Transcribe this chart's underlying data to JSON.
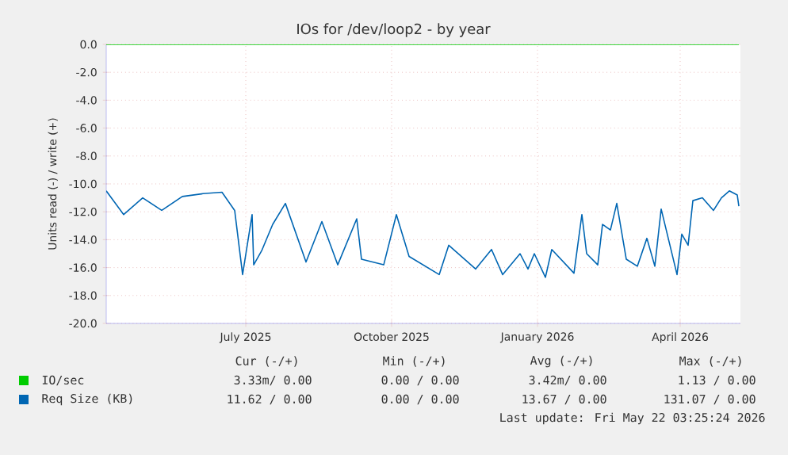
{
  "chart_data": {
    "type": "line",
    "title": "IOs for /dev/loop2 - by year",
    "ylabel": "Units read (-) / write (+)",
    "xlim": [
      "2025-04-04",
      "2026-05-09"
    ],
    "xticks": [
      {
        "value": "2025-07-01",
        "label": "July 2025"
      },
      {
        "value": "2025-10-01",
        "label": "October 2025"
      },
      {
        "value": "2026-01-01",
        "label": "January 2026"
      },
      {
        "value": "2026-04-01",
        "label": "April 2026"
      }
    ],
    "ylim": [
      -20,
      0
    ],
    "yticks": [
      {
        "value": -20,
        "label": "-20.0"
      },
      {
        "value": -18,
        "label": "-18.0"
      },
      {
        "value": -16,
        "label": "-16.0"
      },
      {
        "value": -14,
        "label": "-14.0"
      },
      {
        "value": -12,
        "label": "-12.0"
      },
      {
        "value": -10,
        "label": "-10.0"
      },
      {
        "value": -8,
        "label": "-8.0"
      },
      {
        "value": -6,
        "label": "-6.0"
      },
      {
        "value": -4,
        "label": "-4.0"
      },
      {
        "value": -2,
        "label": "-2.0"
      },
      {
        "value": 0,
        "label": "0.0"
      }
    ],
    "grid": true,
    "legend": "bottom",
    "series": [
      {
        "name": "IO/sec",
        "color": "#00cc00",
        "x": [
          "2025-04-04",
          "2026-05-08"
        ],
        "values": [
          0,
          0
        ]
      },
      {
        "name": "Req Size (KB)",
        "color": "#0066b3",
        "x": [
          "2025-04-04",
          "2025-04-15",
          "2025-04-27",
          "2025-05-09",
          "2025-05-22",
          "2025-06-04",
          "2025-06-16",
          "2025-06-24",
          "2025-06-29",
          "2025-07-05",
          "2025-07-06",
          "2025-07-11",
          "2025-07-18",
          "2025-07-26",
          "2025-08-08",
          "2025-08-18",
          "2025-08-28",
          "2025-09-09",
          "2025-09-12",
          "2025-09-26",
          "2025-10-04",
          "2025-10-12",
          "2025-10-31",
          "2025-11-06",
          "2025-11-23",
          "2025-12-03",
          "2025-12-10",
          "2025-12-21",
          "2025-12-26",
          "2025-12-30",
          "2026-01-06",
          "2026-01-10",
          "2026-01-24",
          "2026-01-29",
          "2026-02-01",
          "2026-02-08",
          "2026-02-11",
          "2026-02-16",
          "2026-02-20",
          "2026-02-26",
          "2026-03-05",
          "2026-03-11",
          "2026-03-16",
          "2026-03-20",
          "2026-03-30",
          "2026-04-02",
          "2026-04-06",
          "2026-04-09",
          "2026-04-15",
          "2026-04-22",
          "2026-04-27",
          "2026-05-02",
          "2026-05-07",
          "2026-05-08"
        ],
        "values": [
          -10.5,
          -12.2,
          -11.0,
          -11.9,
          -10.9,
          -10.7,
          -10.6,
          -11.9,
          -16.5,
          -12.2,
          -15.8,
          -14.8,
          -12.9,
          -11.4,
          -15.6,
          -12.7,
          -15.8,
          -12.5,
          -15.4,
          -15.8,
          -12.2,
          -15.2,
          -16.5,
          -14.4,
          -16.1,
          -14.7,
          -16.5,
          -15.0,
          -16.1,
          -15.0,
          -16.7,
          -14.7,
          -16.4,
          -12.2,
          -15.0,
          -15.8,
          -12.9,
          -13.3,
          -11.4,
          -15.4,
          -15.9,
          -13.9,
          -15.9,
          -11.8,
          -16.5,
          -13.6,
          -14.4,
          -11.2,
          -11.0,
          -11.9,
          -11.0,
          -10.5,
          -10.8,
          -11.6
        ]
      }
    ],
    "annotations": [
      "Cur (-/+)",
      "Min (-/+)",
      "Avg (-/+)",
      "Max (-/+)",
      "3.33m/ 0.00",
      "0.00 / 0.00",
      "3.42m/ 0.00",
      "1.13 / 0.00",
      "11.62 / 0.00",
      "0.00 / 0.00",
      "13.67 / 0.00",
      "131.07 / 0.00",
      "Last update: Fri May 22 03:25:24 2026"
    ]
  }
}
